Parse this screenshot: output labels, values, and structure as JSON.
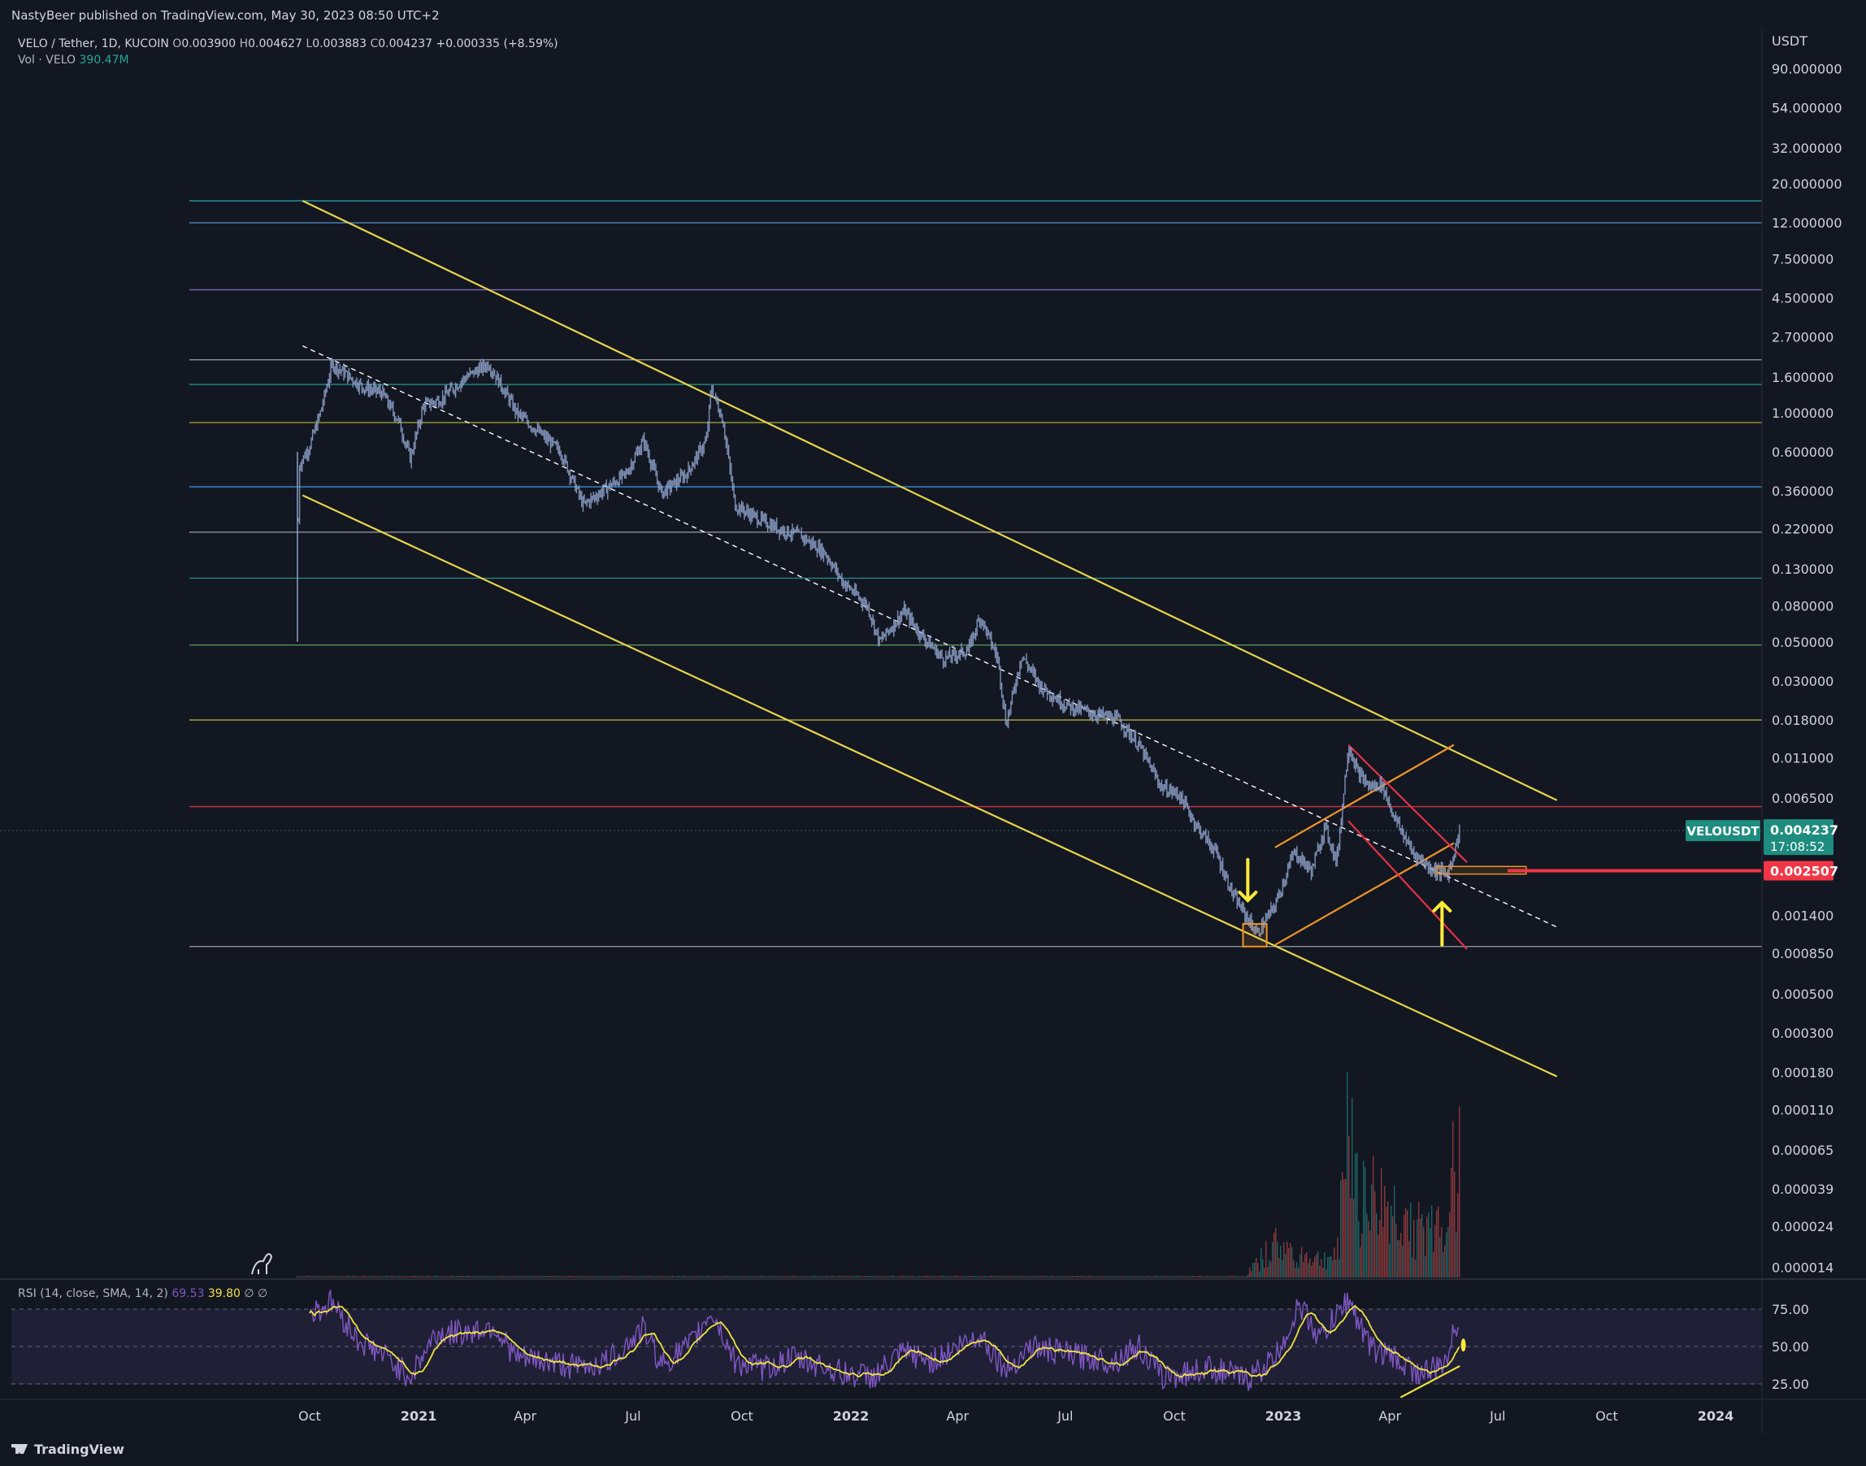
{
  "header": {
    "published": "NastyBeer published on TradingView.com, May 30, 2023 08:50 UTC+2"
  },
  "legend": {
    "symbol": "VELO / Tether, 1D, KUCOIN",
    "o_label": "O",
    "o": "0.003900",
    "h_label": "H",
    "h": "0.004627",
    "l_label": "L",
    "l": "0.003883",
    "c_label": "C",
    "c": "0.004237",
    "change": "+0.000335 (+8.59%)",
    "vol_label": "Vol · VELO",
    "vol": "390.47M"
  },
  "rsi_legend": {
    "label": "RSI (14, close, SMA, 14, 2)",
    "value": "69.53",
    "sma": "39.80",
    "extra": "∅ ∅"
  },
  "price_axis": {
    "currency": "USDT",
    "ticks": [
      "90.000000",
      "54.000000",
      "32.000000",
      "20.000000",
      "12.000000",
      "7.500000",
      "4.500000",
      "2.700000",
      "1.600000",
      "1.000000",
      "0.600000",
      "0.360000",
      "0.220000",
      "0.130000",
      "0.080000",
      "0.050000",
      "0.030000",
      "0.018000",
      "0.011000",
      "0.006500",
      "0.001400",
      "0.000850",
      "0.000500",
      "0.000300",
      "0.000180",
      "0.000110",
      "0.000065",
      "0.000039",
      "0.000024",
      "0.000014"
    ]
  },
  "rsi_axis": {
    "ticks": [
      "75.00",
      "50.00",
      "25.00"
    ]
  },
  "time_axis": {
    "ticks": [
      "Oct",
      "2021",
      "Apr",
      "Jul",
      "Oct",
      "2022",
      "Apr",
      "Jul",
      "Oct",
      "2023",
      "Apr",
      "Jul",
      "Oct",
      "2024"
    ]
  },
  "badges": {
    "symbol": "VELOUSDT",
    "price": "0.004237",
    "countdown": "17:08:52",
    "level": "0.002507"
  },
  "footer": {
    "brand": "TradingView"
  },
  "colors": {
    "background": "#131722",
    "candle_color": "#8da0c8",
    "channel": "#e8d54a",
    "orange_channel": "#f0942a",
    "red_channel": "#e53246",
    "rsi_line": "#7e57c2",
    "rsi_sma": "#f0e442",
    "badge_green": "#1e8c7e",
    "badge_red": "#f23645"
  },
  "chart_data": {
    "type": "candlestick",
    "symbol": "VELO / Tether",
    "interval": "1D",
    "exchange": "KUCOIN",
    "yscale": "log",
    "last_price": 0.004237,
    "marked_level": 0.002507,
    "horizontal_levels": [
      {
        "price": 16.0,
        "color": "#26c6da"
      },
      {
        "price": 12.0,
        "color": "#5b9bd5"
      },
      {
        "price": 5.0,
        "color": "#9575cd"
      },
      {
        "price": 2.0,
        "color": "#b2b5be"
      },
      {
        "price": 1.45,
        "color": "#26a69a"
      },
      {
        "price": 0.88,
        "color": "#c0ca33"
      },
      {
        "price": 0.38,
        "color": "#42a5f5"
      },
      {
        "price": 0.21,
        "color": "#b2b5be"
      },
      {
        "price": 0.115,
        "color": "#26a69a"
      },
      {
        "price": 0.048,
        "color": "#66bb6a"
      },
      {
        "price": 0.018,
        "color": "#e8d54a"
      },
      {
        "price": 0.0058,
        "color": "#f23645"
      },
      {
        "price": 0.00093,
        "color": "#b2b5be"
      }
    ],
    "price_path": [
      [
        "2020-09-20",
        0.05
      ],
      [
        "2020-09-22",
        0.5
      ],
      [
        "2020-10-01",
        0.65
      ],
      [
        "2020-10-10",
        1.0
      ],
      [
        "2020-10-20",
        1.9
      ],
      [
        "2020-11-01",
        1.65
      ],
      [
        "2020-11-15",
        1.4
      ],
      [
        "2020-12-01",
        1.3
      ],
      [
        "2020-12-15",
        0.9
      ],
      [
        "2020-12-25",
        0.55
      ],
      [
        "2021-01-05",
        1.1
      ],
      [
        "2021-01-20",
        1.2
      ],
      [
        "2021-02-10",
        1.6
      ],
      [
        "2021-03-01",
        1.9
      ],
      [
        "2021-03-10",
        1.5
      ],
      [
        "2021-03-25",
        1.0
      ],
      [
        "2021-04-15",
        0.75
      ],
      [
        "2021-05-01",
        0.6
      ],
      [
        "2021-05-20",
        0.3
      ],
      [
        "2021-06-10",
        0.38
      ],
      [
        "2021-06-25",
        0.45
      ],
      [
        "2021-07-10",
        0.7
      ],
      [
        "2021-07-25",
        0.35
      ],
      [
        "2021-08-15",
        0.45
      ],
      [
        "2021-09-01",
        0.7
      ],
      [
        "2021-09-05",
        1.4
      ],
      [
        "2021-09-15",
        0.9
      ],
      [
        "2021-09-25",
        0.3
      ],
      [
        "2021-10-15",
        0.25
      ],
      [
        "2021-11-01",
        0.22
      ],
      [
        "2021-11-20",
        0.2
      ],
      [
        "2021-12-10",
        0.16
      ],
      [
        "2021-12-25",
        0.11
      ],
      [
        "2022-01-15",
        0.08
      ],
      [
        "2022-01-25",
        0.05
      ],
      [
        "2022-02-15",
        0.075
      ],
      [
        "2022-03-01",
        0.055
      ],
      [
        "2022-03-20",
        0.04
      ],
      [
        "2022-04-10",
        0.045
      ],
      [
        "2022-04-20",
        0.07
      ],
      [
        "2022-05-05",
        0.04
      ],
      [
        "2022-05-12",
        0.017
      ],
      [
        "2022-05-25",
        0.042
      ],
      [
        "2022-06-10",
        0.028
      ],
      [
        "2022-07-01",
        0.022
      ],
      [
        "2022-07-20",
        0.02
      ],
      [
        "2022-08-15",
        0.018
      ],
      [
        "2022-09-01",
        0.013
      ],
      [
        "2022-09-20",
        0.0075
      ],
      [
        "2022-10-05",
        0.0068
      ],
      [
        "2022-10-20",
        0.0045
      ],
      [
        "2022-11-05",
        0.0032
      ],
      [
        "2022-11-20",
        0.0018
      ],
      [
        "2022-12-10",
        0.0011
      ],
      [
        "2022-12-25",
        0.0016
      ],
      [
        "2023-01-10",
        0.0032
      ],
      [
        "2023-01-25",
        0.0025
      ],
      [
        "2023-02-05",
        0.0045
      ],
      [
        "2023-02-15",
        0.0028
      ],
      [
        "2023-02-25",
        0.013
      ],
      [
        "2023-03-05",
        0.009
      ],
      [
        "2023-03-15",
        0.0075
      ],
      [
        "2023-03-25",
        0.0078
      ],
      [
        "2023-04-05",
        0.005
      ],
      [
        "2023-04-20",
        0.0032
      ],
      [
        "2023-05-05",
        0.0026
      ],
      [
        "2023-05-20",
        0.0024
      ],
      [
        "2023-05-30",
        0.004237
      ]
    ],
    "volume_profile": [
      [
        "2022-12-01",
        0.02
      ],
      [
        "2022-12-25",
        0.15
      ],
      [
        "2023-01-05",
        0.12
      ],
      [
        "2023-02-01",
        0.08
      ],
      [
        "2023-02-15",
        0.1
      ],
      [
        "2023-02-25",
        0.8
      ],
      [
        "2023-03-05",
        0.4
      ],
      [
        "2023-03-20",
        0.35
      ],
      [
        "2023-04-05",
        0.3
      ],
      [
        "2023-04-20",
        0.25
      ],
      [
        "2023-05-05",
        0.2
      ],
      [
        "2023-05-20",
        0.3
      ],
      [
        "2023-05-30",
        0.75
      ]
    ],
    "rsi": [
      [
        "2020-10-01",
        72
      ],
      [
        "2020-10-20",
        80
      ],
      [
        "2020-11-10",
        55
      ],
      [
        "2020-12-01",
        45
      ],
      [
        "2020-12-25",
        30
      ],
      [
        "2021-01-15",
        58
      ],
      [
        "2021-02-15",
        60
      ],
      [
        "2021-03-05",
        64
      ],
      [
        "2021-03-25",
        42
      ],
      [
        "2021-04-20",
        40
      ],
      [
        "2021-05-15",
        36
      ],
      [
        "2021-06-10",
        40
      ],
      [
        "2021-07-10",
        62
      ],
      [
        "2021-07-25",
        38
      ],
      [
        "2021-08-20",
        52
      ],
      [
        "2021-09-05",
        74
      ],
      [
        "2021-09-25",
        40
      ],
      [
        "2021-10-20",
        35
      ],
      [
        "2021-11-10",
        42
      ],
      [
        "2021-12-05",
        38
      ],
      [
        "2021-12-25",
        32
      ],
      [
        "2022-01-20",
        30
      ],
      [
        "2022-02-15",
        46
      ],
      [
        "2022-03-10",
        40
      ],
      [
        "2022-04-20",
        58
      ],
      [
        "2022-05-12",
        34
      ],
      [
        "2022-06-01",
        50
      ],
      [
        "2022-07-01",
        45
      ],
      [
        "2022-08-10",
        40
      ],
      [
        "2022-09-01",
        50
      ],
      [
        "2022-09-20",
        30
      ],
      [
        "2022-10-10",
        32
      ],
      [
        "2022-11-01",
        36
      ],
      [
        "2022-12-01",
        28
      ],
      [
        "2022-12-25",
        42
      ],
      [
        "2023-01-15",
        78
      ],
      [
        "2023-02-01",
        55
      ],
      [
        "2023-02-25",
        82
      ],
      [
        "2023-03-15",
        50
      ],
      [
        "2023-04-05",
        42
      ],
      [
        "2023-04-25",
        32
      ],
      [
        "2023-05-15",
        36
      ],
      [
        "2023-05-30",
        69.53
      ]
    ],
    "trendlines": [
      {
        "from": [
          "2020-09-25",
          16.0
        ],
        "to": [
          "2023-08-20",
          0.0063
        ],
        "color": "#e8d54a",
        "style": "solid"
      },
      {
        "from": [
          "2020-09-25",
          0.34
        ],
        "to": [
          "2023-08-20",
          0.00017
        ],
        "color": "#e8d54a",
        "style": "solid"
      },
      {
        "from": [
          "2020-09-25",
          2.4
        ],
        "to": [
          "2023-08-20",
          0.0012
        ],
        "color": "#ffffff",
        "style": "dashed"
      },
      {
        "from": [
          "2022-12-25",
          0.0034
        ],
        "to": [
          "2023-05-25",
          0.013
        ],
        "color": "#f0942a",
        "style": "solid"
      },
      {
        "from": [
          "2022-12-25",
          0.00095
        ],
        "to": [
          "2023-05-25",
          0.0036
        ],
        "color": "#f0942a",
        "style": "solid"
      },
      {
        "from": [
          "2023-02-25",
          0.013
        ],
        "to": [
          "2023-06-05",
          0.0028
        ],
        "color": "#e53246",
        "style": "solid"
      },
      {
        "from": [
          "2023-02-25",
          0.0048
        ],
        "to": [
          "2023-06-05",
          0.0009
        ],
        "color": "#e53246",
        "style": "solid"
      }
    ]
  }
}
